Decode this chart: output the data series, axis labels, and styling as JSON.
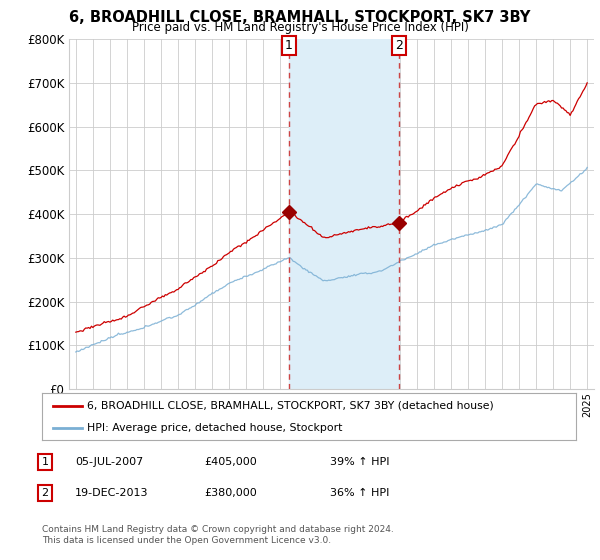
{
  "title": "6, BROADHILL CLOSE, BRAMHALL, STOCKPORT, SK7 3BY",
  "subtitle": "Price paid vs. HM Land Registry's House Price Index (HPI)",
  "ylim": [
    0,
    800000
  ],
  "yticks": [
    0,
    100000,
    200000,
    300000,
    400000,
    500000,
    600000,
    700000,
    800000
  ],
  "ytick_labels": [
    "£0",
    "£100K",
    "£200K",
    "£300K",
    "£400K",
    "£500K",
    "£600K",
    "£700K",
    "£800K"
  ],
  "transaction1": {
    "date_num": 2007.51,
    "price": 405000,
    "label": "1",
    "date_str": "05-JUL-2007",
    "pct": "39% ↑ HPI"
  },
  "transaction2": {
    "date_num": 2013.97,
    "price": 380000,
    "label": "2",
    "date_str": "19-DEC-2013",
    "pct": "36% ↑ HPI"
  },
  "line_color_red": "#cc0000",
  "line_color_blue": "#7aafd4",
  "shade_color": "#ddeef8",
  "grid_color": "#cccccc",
  "legend1": "6, BROADHILL CLOSE, BRAMHALL, STOCKPORT, SK7 3BY (detached house)",
  "legend2": "HPI: Average price, detached house, Stockport",
  "footnote": "Contains HM Land Registry data © Crown copyright and database right 2024.\nThis data is licensed under the Open Government Licence v3.0."
}
